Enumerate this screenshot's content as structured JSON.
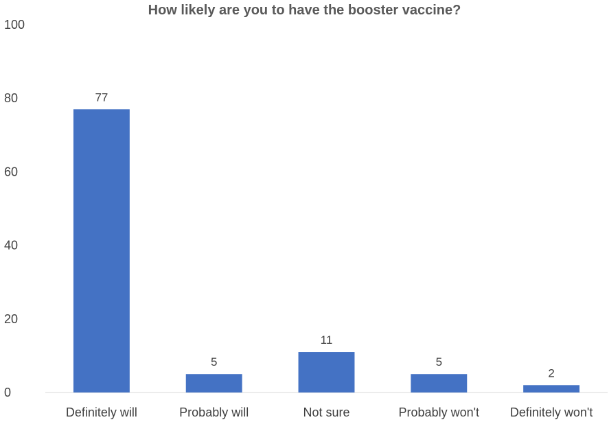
{
  "chart_data": {
    "type": "bar",
    "title": "How likely are you to have the booster vaccine?",
    "categories": [
      "Definitely will",
      "Probably will",
      "Not sure",
      "Probably won't",
      "Definitely won't"
    ],
    "values": [
      77,
      5,
      11,
      5,
      2
    ],
    "yticks": [
      "0",
      "20",
      "40",
      "60",
      "80",
      "100"
    ],
    "ylim": [
      0,
      100
    ],
    "grid": false,
    "legend": "none",
    "bar_color": "#4472C4"
  }
}
